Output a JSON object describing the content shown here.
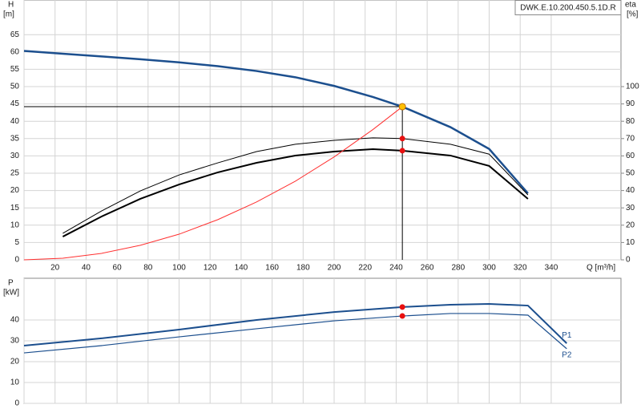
{
  "chart_data": [
    {
      "type": "line",
      "title": "DWK.E.10.200.450.5.1D.R",
      "ylabel": "H",
      "yunit": "[m]",
      "y2label": "eta",
      "y2unit": "[%]",
      "xlabel": "Q [m³/h]",
      "xlim": [
        0,
        385
      ],
      "xticks": [
        0,
        20,
        40,
        60,
        80,
        100,
        120,
        140,
        160,
        180,
        200,
        220,
        240,
        260,
        280,
        300,
        320,
        340
      ],
      "ylim": [
        0,
        75
      ],
      "yticks": [
        0,
        5,
        10,
        15,
        20,
        25,
        30,
        35,
        40,
        45,
        50,
        55,
        60,
        65
      ],
      "y2lim": [
        0,
        150
      ],
      "y2ticks": [
        0,
        10,
        20,
        30,
        40,
        50,
        60,
        70,
        80,
        90,
        100
      ],
      "grid": true,
      "series": [
        {
          "color": "#1c4f8e",
          "x": [
            0,
            25,
            50,
            75,
            100,
            125,
            150,
            175,
            200,
            225,
            244,
            275,
            300,
            325
          ],
          "values": [
            60.3,
            59.5,
            58.7,
            57.9,
            57.0,
            55.9,
            54.5,
            52.7,
            50.2,
            47.0,
            44.2,
            38.3,
            32.0,
            19.2
          ]
        },
        {
          "color": "#000000",
          "axis": "y2",
          "x": [
            25,
            50,
            75,
            100,
            125,
            150,
            175,
            200,
            225,
            244,
            275,
            300,
            325
          ],
          "values": [
            15.3,
            28.2,
            39.8,
            49.0,
            56.0,
            62.5,
            66.7,
            69.0,
            70.4,
            70.0,
            66.7,
            61.0,
            37.5
          ]
        },
        {
          "color": "#000000",
          "axis": "y2",
          "x": [
            25,
            50,
            75,
            100,
            125,
            150,
            175,
            200,
            225,
            244,
            275,
            300,
            325
          ],
          "values": [
            13.4,
            25.0,
            35.2,
            43.5,
            50.5,
            56.0,
            60.2,
            62.5,
            63.9,
            63.0,
            60.2,
            54.2,
            35.2
          ]
        },
        {
          "color": "#ff3030",
          "x": [
            0,
            25,
            50,
            75,
            100,
            125,
            150,
            175,
            200,
            225,
            244
          ],
          "values": [
            0,
            0.46,
            1.86,
            4.2,
            7.4,
            11.6,
            16.7,
            22.7,
            29.7,
            37.6,
            44.2
          ]
        }
      ],
      "operating_point": {
        "x": 244,
        "y": 44.2,
        "color": "#ffc000"
      },
      "points": [
        {
          "x": 244,
          "y": 70.0,
          "axis": "y2",
          "color": "#e81010"
        },
        {
          "x": 244,
          "y": 63.0,
          "axis": "y2",
          "color": "#e81010"
        }
      ]
    },
    {
      "type": "line",
      "ylabel": "P",
      "yunit": "[kW]",
      "xlim": [
        0,
        385
      ],
      "ylim": [
        0,
        60
      ],
      "yticks": [
        0,
        10,
        20,
        30,
        40
      ],
      "grid": true,
      "series": [
        {
          "name": "P1",
          "color": "#1c4f8e",
          "x": [
            0,
            50,
            100,
            150,
            200,
            244,
            275,
            300,
            325,
            350
          ],
          "values": [
            27.7,
            31.2,
            35.4,
            40.0,
            43.8,
            46.2,
            47.3,
            47.7,
            46.9,
            28.8
          ]
        },
        {
          "name": "P2",
          "color": "#1c4f8e",
          "x": [
            0,
            50,
            100,
            150,
            200,
            244,
            275,
            300,
            325,
            350
          ],
          "values": [
            24.2,
            27.7,
            31.9,
            35.8,
            39.6,
            41.9,
            43.1,
            43.1,
            42.3,
            26.2
          ]
        }
      ],
      "points": [
        {
          "x": 244,
          "y": 46.2,
          "color": "#e81010"
        },
        {
          "x": 244,
          "y": 41.9,
          "color": "#e81010"
        }
      ]
    }
  ]
}
